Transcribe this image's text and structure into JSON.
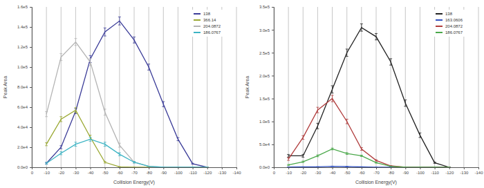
{
  "chart_data": [
    {
      "type": "line",
      "x_label": "Collision Energy(V)",
      "y_label": "Peak Area",
      "x": [
        -10,
        -20,
        -30,
        -40,
        -50,
        -60,
        -70,
        -80,
        -90,
        -100,
        -110,
        -120
      ],
      "xlim": [
        0,
        -140
      ],
      "xticks": [
        0,
        -10,
        -20,
        -30,
        -40,
        -50,
        -60,
        -70,
        -80,
        -90,
        -100,
        -110,
        -120,
        -130,
        -140
      ],
      "ylim": [
        0,
        160000
      ],
      "yticks": [
        {
          "value": 0,
          "label": "0.0e0"
        },
        {
          "value": 20000,
          "label": "2.0e4"
        },
        {
          "value": 40000,
          "label": "4.0e4"
        },
        {
          "value": 60000,
          "label": "6.0e4"
        },
        {
          "value": 80000,
          "label": "8.0e4"
        },
        {
          "value": 100000,
          "label": "1.0e5"
        },
        {
          "value": 120000,
          "label": "1.2e5"
        },
        {
          "value": 140000,
          "label": "1.4e5"
        },
        {
          "value": 160000,
          "label": "1.6e5"
        }
      ],
      "grid": true,
      "legend": "upper right",
      "series": [
        {
          "name": "138",
          "color": "#3b3c98",
          "values": [
            4000,
            20000,
            56000,
            108000,
            135000,
            146000,
            127000,
            100000,
            63000,
            28000,
            3500,
            0
          ],
          "errors": [
            800,
            1500,
            2500,
            3500,
            4000,
            4000,
            3000,
            3000,
            2500,
            1500,
            500,
            0
          ]
        },
        {
          "name": "366.14",
          "color": "#9aa832",
          "values": [
            23000,
            48000,
            57000,
            30000,
            5000,
            500,
            0,
            0,
            0,
            0,
            0,
            0
          ],
          "errors": [
            1500,
            2500,
            2500,
            2000,
            800,
            0,
            0,
            0,
            0,
            0,
            0,
            0
          ]
        },
        {
          "name": "204.0872",
          "color": "#b4b4b4",
          "values": [
            53000,
            110000,
            125000,
            105000,
            55000,
            22000,
            5000,
            1000,
            0,
            0,
            0,
            0
          ],
          "errors": [
            2500,
            3500,
            3500,
            3500,
            3000,
            2000,
            800,
            0,
            0,
            0,
            0,
            0
          ]
        },
        {
          "name": "186.0767",
          "color": "#3cb4c4",
          "values": [
            4000,
            14000,
            23000,
            28000,
            23000,
            13000,
            5000,
            1000,
            0,
            0,
            0,
            0
          ],
          "errors": [
            800,
            1500,
            2000,
            2000,
            2000,
            1500,
            800,
            0,
            0,
            0,
            0,
            0
          ]
        }
      ]
    },
    {
      "type": "line",
      "x_label": "Collision Energy(V)",
      "y_label": "Peak Area",
      "x": [
        -10,
        -20,
        -30,
        -40,
        -50,
        -60,
        -70,
        -80,
        -90,
        -100,
        -110,
        -120
      ],
      "xlim": [
        0,
        -140
      ],
      "xticks": [
        0,
        -10,
        -20,
        -30,
        -40,
        -50,
        -60,
        -70,
        -80,
        -90,
        -100,
        -110,
        -120,
        -130,
        -140
      ],
      "ylim": [
        0,
        350000
      ],
      "yticks": [
        {
          "value": 0,
          "label": "0.0e0"
        },
        {
          "value": 50000,
          "label": "5.0e4"
        },
        {
          "value": 100000,
          "label": "1.0e5"
        },
        {
          "value": 150000,
          "label": "1.5e5"
        },
        {
          "value": 200000,
          "label": "2.0e5"
        },
        {
          "value": 250000,
          "label": "2.5e5"
        },
        {
          "value": 300000,
          "label": "3.0e5"
        },
        {
          "value": 350000,
          "label": "3.5e5"
        }
      ],
      "grid": true,
      "legend": "upper right",
      "series": [
        {
          "name": "138",
          "color": "#222222",
          "values": [
            25000,
            25000,
            90000,
            170000,
            250000,
            305000,
            285000,
            230000,
            140000,
            70000,
            10000,
            0
          ],
          "errors": [
            3000,
            3000,
            6000,
            8000,
            8000,
            8000,
            7000,
            7000,
            7000,
            5000,
            1500,
            0
          ]
        },
        {
          "name": "163.0606",
          "color": "#3050c0",
          "values": [
            500,
            800,
            1000,
            2000,
            1500,
            800,
            300,
            0,
            0,
            0,
            0,
            0
          ],
          "errors": [
            0,
            0,
            0,
            500,
            500,
            0,
            0,
            0,
            0,
            0,
            0,
            0
          ]
        },
        {
          "name": "204.0872",
          "color": "#b03c3c",
          "values": [
            18000,
            65000,
            125000,
            150000,
            100000,
            40000,
            15000,
            3000,
            0,
            0,
            0,
            0
          ],
          "errors": [
            3000,
            4000,
            6000,
            7000,
            5000,
            3000,
            1500,
            0,
            0,
            0,
            0,
            0
          ]
        },
        {
          "name": "186.0767",
          "color": "#4aa84a",
          "values": [
            5000,
            12000,
            25000,
            40000,
            30000,
            25000,
            10000,
            2000,
            0,
            0,
            0,
            0
          ],
          "errors": [
            1000,
            1500,
            2000,
            2000,
            2000,
            1500,
            1000,
            0,
            0,
            0,
            0,
            0
          ]
        }
      ]
    }
  ]
}
